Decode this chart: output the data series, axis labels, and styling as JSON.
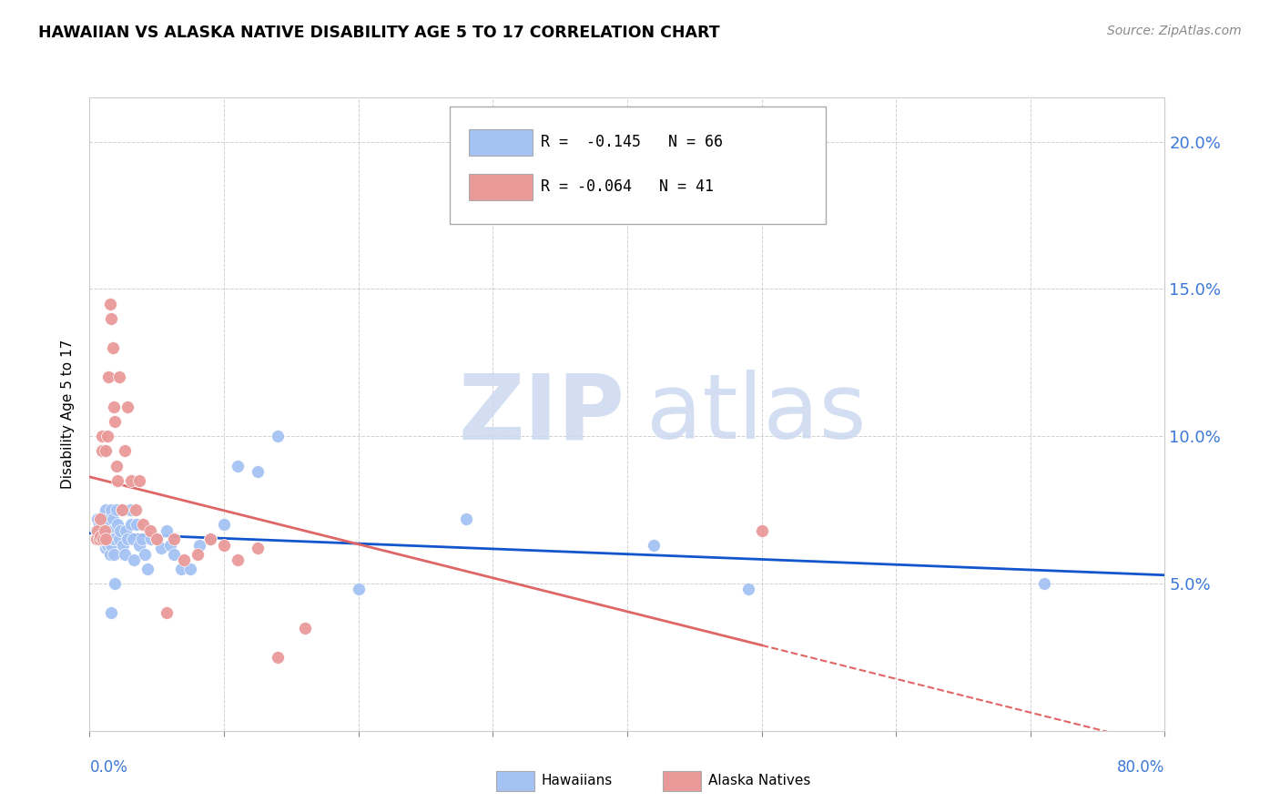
{
  "title": "HAWAIIAN VS ALASKA NATIVE DISABILITY AGE 5 TO 17 CORRELATION CHART",
  "source": "Source: ZipAtlas.com",
  "ylabel": "Disability Age 5 to 17",
  "yticks": [
    0.0,
    0.05,
    0.1,
    0.15,
    0.2
  ],
  "ytick_labels": [
    "",
    "5.0%",
    "10.0%",
    "15.0%",
    "20.0%"
  ],
  "xlim": [
    0.0,
    0.8
  ],
  "ylim": [
    0.0,
    0.215
  ],
  "legend_r_hawaiians": "-0.145",
  "legend_n_hawaiians": "66",
  "legend_r_alaska": "-0.064",
  "legend_n_alaska": "41",
  "hawaiian_color": "#a4c2f4",
  "alaska_color": "#ea9999",
  "trend_hawaiian_color": "#1155cc",
  "trend_alaska_color": "#e06666",
  "hawaiians_x": [
    0.005,
    0.006,
    0.007,
    0.008,
    0.008,
    0.009,
    0.009,
    0.01,
    0.01,
    0.011,
    0.011,
    0.012,
    0.012,
    0.012,
    0.013,
    0.013,
    0.013,
    0.014,
    0.014,
    0.015,
    0.015,
    0.016,
    0.016,
    0.016,
    0.017,
    0.017,
    0.018,
    0.018,
    0.019,
    0.02,
    0.021,
    0.022,
    0.023,
    0.024,
    0.025,
    0.026,
    0.027,
    0.028,
    0.03,
    0.031,
    0.032,
    0.033,
    0.035,
    0.037,
    0.039,
    0.041,
    0.043,
    0.046,
    0.05,
    0.053,
    0.057,
    0.06,
    0.063,
    0.068,
    0.075,
    0.082,
    0.09,
    0.1,
    0.11,
    0.125,
    0.14,
    0.2,
    0.28,
    0.42,
    0.49,
    0.71
  ],
  "hawaiians_y": [
    0.068,
    0.072,
    0.07,
    0.066,
    0.072,
    0.065,
    0.07,
    0.068,
    0.073,
    0.065,
    0.07,
    0.067,
    0.062,
    0.075,
    0.065,
    0.07,
    0.063,
    0.068,
    0.072,
    0.06,
    0.065,
    0.063,
    0.075,
    0.04,
    0.065,
    0.072,
    0.06,
    0.065,
    0.05,
    0.075,
    0.07,
    0.065,
    0.068,
    0.075,
    0.063,
    0.06,
    0.068,
    0.065,
    0.075,
    0.07,
    0.065,
    0.058,
    0.07,
    0.063,
    0.065,
    0.06,
    0.055,
    0.065,
    0.065,
    0.062,
    0.068,
    0.063,
    0.06,
    0.055,
    0.055,
    0.063,
    0.065,
    0.07,
    0.09,
    0.088,
    0.1,
    0.048,
    0.072,
    0.063,
    0.048,
    0.05
  ],
  "alaska_x": [
    0.005,
    0.006,
    0.007,
    0.008,
    0.008,
    0.009,
    0.009,
    0.01,
    0.011,
    0.012,
    0.012,
    0.013,
    0.014,
    0.015,
    0.016,
    0.017,
    0.018,
    0.019,
    0.02,
    0.021,
    0.022,
    0.024,
    0.026,
    0.028,
    0.031,
    0.034,
    0.037,
    0.04,
    0.045,
    0.05,
    0.057,
    0.063,
    0.07,
    0.08,
    0.09,
    0.1,
    0.11,
    0.125,
    0.14,
    0.16,
    0.5
  ],
  "alaska_y": [
    0.065,
    0.068,
    0.065,
    0.072,
    0.066,
    0.1,
    0.095,
    0.065,
    0.068,
    0.065,
    0.095,
    0.1,
    0.12,
    0.145,
    0.14,
    0.13,
    0.11,
    0.105,
    0.09,
    0.085,
    0.12,
    0.075,
    0.095,
    0.11,
    0.085,
    0.075,
    0.085,
    0.07,
    0.068,
    0.065,
    0.04,
    0.065,
    0.058,
    0.06,
    0.065,
    0.063,
    0.058,
    0.062,
    0.025,
    0.035,
    0.068
  ]
}
